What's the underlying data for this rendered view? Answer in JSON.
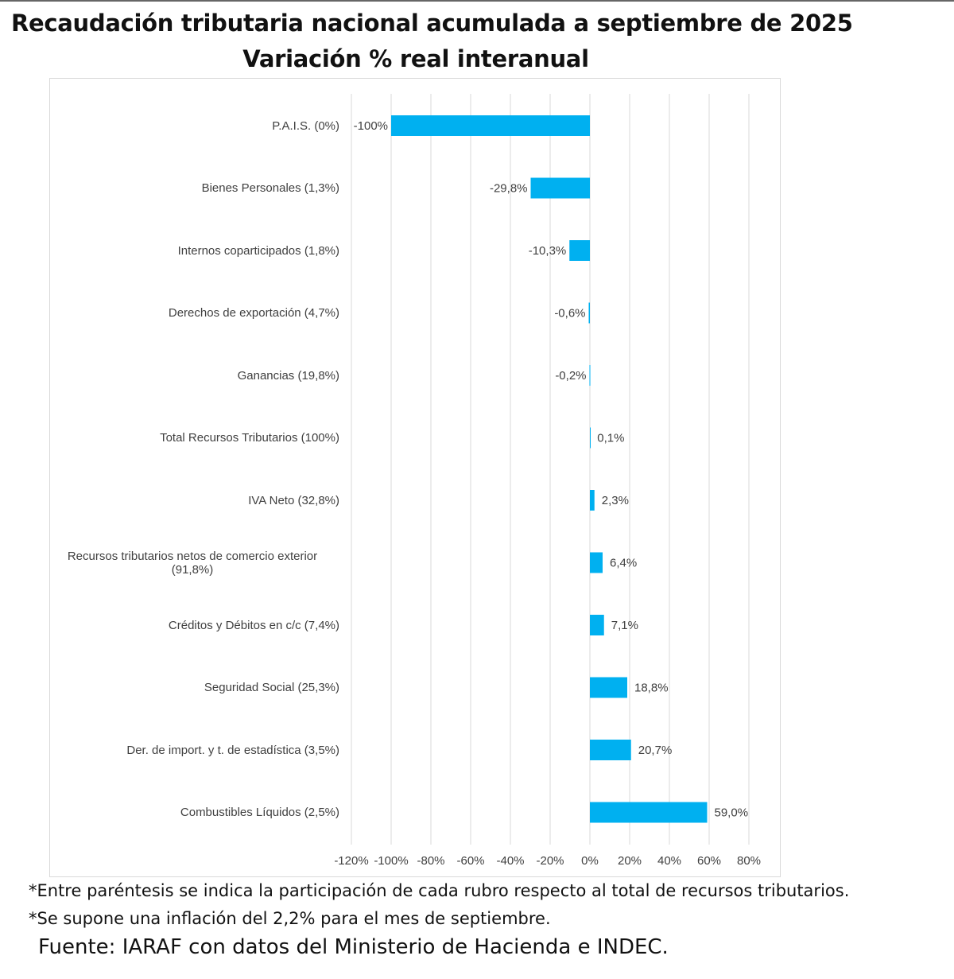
{
  "title": "Recaudación tributaria nacional acumulada a septiembre de 2025",
  "subtitle": "Variación % real interanual",
  "notes": [
    "*Entre paréntesis se indica la participación de cada rubro respecto al total de recursos tributarios.",
    "*Se supone una inflación del 2,2% para el mes de septiembre."
  ],
  "source": "Fuente: IARAF con datos del Ministerio de Hacienda e INDEC.",
  "chart_data": {
    "type": "bar",
    "orientation": "horizontal",
    "categories": [
      "P.A.I.S. (0%)",
      "Bienes Personales (1,3%)",
      "Internos coparticipados (1,8%)",
      "Derechos de exportación (4,7%)",
      "Ganancias (19,8%)",
      "Total Recursos Tributarios (100%)",
      "IVA Neto (32,8%)",
      "Recursos tributarios netos de comercio exterior (91,8%)",
      "Créditos y Débitos en c/c (7,4%)",
      "Seguridad Social (25,3%)",
      "Der. de import. y t. de estadística (3,5%)",
      "Combustibles Líquidos (2,5%)"
    ],
    "values": [
      -100,
      -29.8,
      -10.3,
      -0.6,
      -0.2,
      0.1,
      2.3,
      6.4,
      7.1,
      18.8,
      20.7,
      59.0
    ],
    "data_labels": [
      "-100%",
      "-29,8%",
      "-10,3%",
      "-0,6%",
      "-0,2%",
      "0,1%",
      "2,3%",
      "6,4%",
      "7,1%",
      "18,8%",
      "20,7%",
      "59,0%"
    ],
    "xlim": [
      -120,
      80
    ],
    "xticks": [
      -120,
      -100,
      -80,
      -60,
      -40,
      -20,
      0,
      20,
      40,
      60,
      80
    ],
    "xtick_labels": [
      "-120%",
      "-100%",
      "-80%",
      "-60%",
      "-40%",
      "-20%",
      "0%",
      "20%",
      "40%",
      "60%",
      "80%"
    ],
    "grid": "vertical",
    "bar_color": "#00B0F0",
    "title": "Recaudación tributaria nacional acumulada a septiembre de 2025",
    "subtitle": "Variación % real interanual"
  }
}
